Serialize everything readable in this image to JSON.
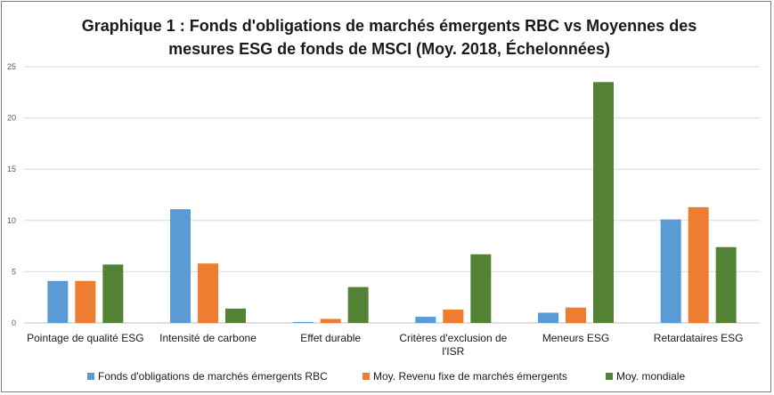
{
  "chart_data": {
    "type": "bar",
    "title": "Graphique 1 : Fonds d'obligations de marchés émergents RBC vs Moyennes des mesures ESG de fonds de MSCI (Moy. 2018, Échelonnées)",
    "title_lines": [
      "Graphique 1 : Fonds d'obligations de marchés émergents RBC vs Moyennes des",
      "mesures ESG de fonds de MSCI (Moy. 2018, Échelonnées)"
    ],
    "categories": [
      [
        "Pointage de qualité ESG"
      ],
      [
        "Intensité de carbone"
      ],
      [
        "Effet durable"
      ],
      [
        "Critères d'exclusion de",
        "l'ISR"
      ],
      [
        "Meneurs ESG"
      ],
      [
        "Retardataires ESG"
      ]
    ],
    "series": [
      {
        "name": "Fonds d'obligations de marchés émergents RBC",
        "color": "#5b9bd5",
        "values": [
          4.1,
          11.1,
          0.1,
          0.6,
          1.0,
          10.1
        ]
      },
      {
        "name": "Moy. Revenu fixe de marchés émergents",
        "color": "#ed7d31",
        "values": [
          4.1,
          5.8,
          0.4,
          1.3,
          1.5,
          11.3
        ]
      },
      {
        "name": "Moy. mondiale",
        "color": "#548235",
        "values": [
          5.7,
          1.4,
          3.5,
          6.7,
          23.5,
          7.4
        ]
      }
    ],
    "yticks": [
      0,
      5,
      10,
      15,
      20,
      25
    ],
    "ylim": [
      0,
      25
    ],
    "xlabel": "",
    "ylabel": "",
    "grid": true,
    "legend_position": "bottom"
  }
}
